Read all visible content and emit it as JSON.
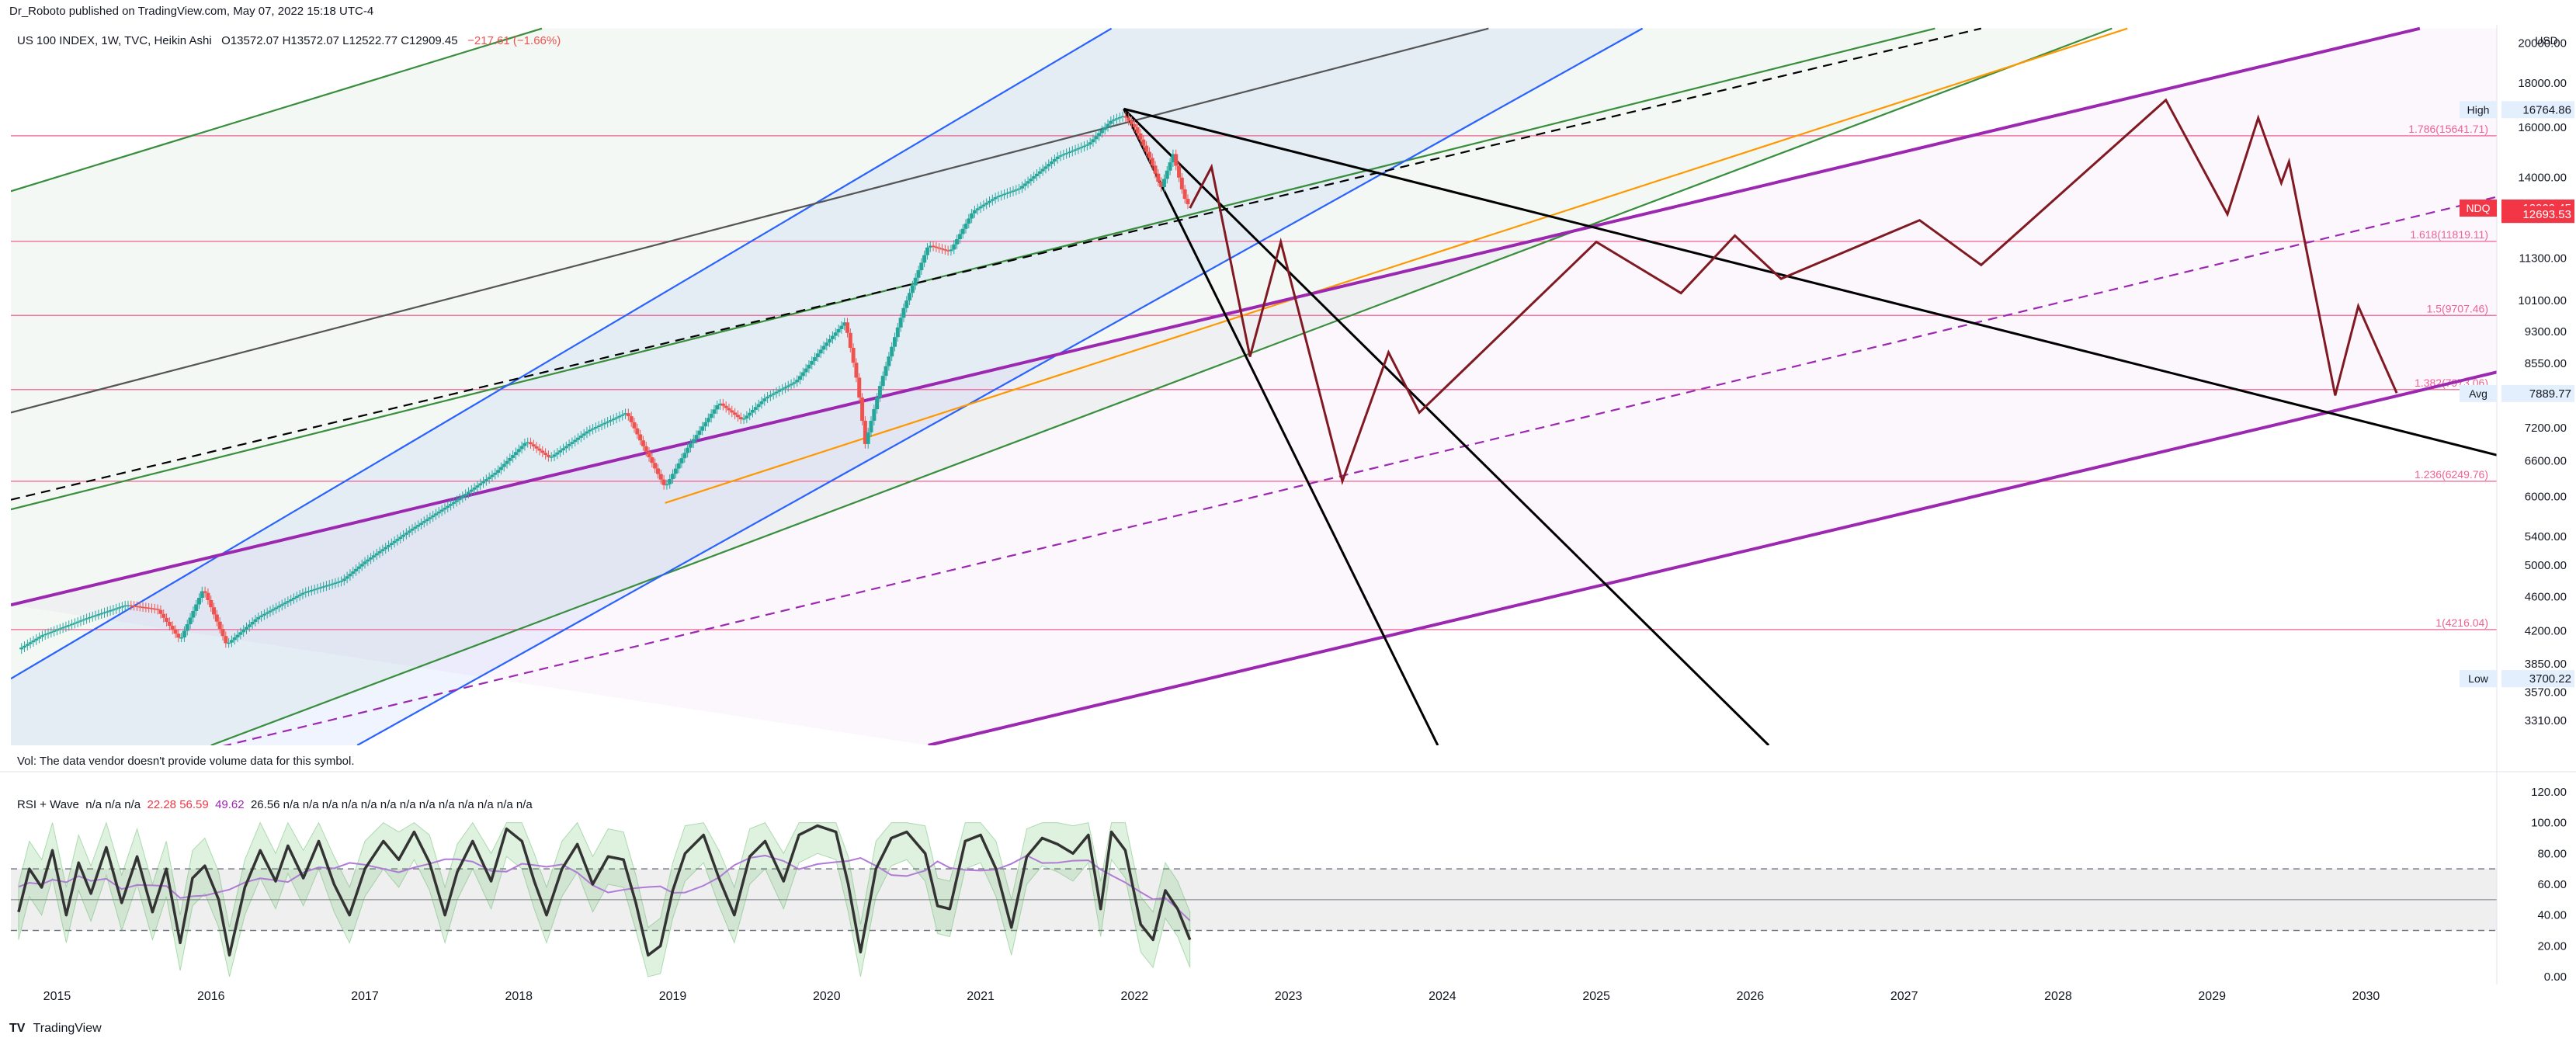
{
  "header": {
    "published": "Dr_Roboto published on TradingView.com, May 07, 2022 15:18 UTC-4"
  },
  "legend": {
    "symbol": "US 100 INDEX, 1W, TVC, Heikin Ashi",
    "ohlc": "O13572.07 H13572.07 L12522.77 C12909.45",
    "change": "−217.61 (−1.66%)"
  },
  "volume": {
    "text": "Vol: The data vendor doesn't provide volume data for this symbol."
  },
  "rsi": {
    "title": "RSI + Wave",
    "values": "n/a n/a n/a",
    "red_values": "22.28 56.59",
    "purple_value": "49.62",
    "rest": "26.56 n/a n/a n/a n/a n/a n/a n/a n/a n/a n/a n/a n/a n/a"
  },
  "footer": {
    "brand": "TradingView"
  },
  "colors": {
    "up": "#26a69a",
    "down": "#ef5350",
    "channel_green": "#388e3c",
    "channel_blue": "#2962ff",
    "purple": "#9c27b0",
    "orange": "#ff9800",
    "projection": "#801922",
    "fib": "#f06292",
    "rsi_line": "#333333",
    "rsi_ma": "#b07bd6"
  },
  "chart_data": [
    {
      "type": "line",
      "name": "price_panel",
      "scale": "log",
      "ylim": [
        3100,
        21000
      ],
      "xlim": [
        2014.7,
        2030.85
      ],
      "x_ticks": [
        "2015",
        "2016",
        "2017",
        "2018",
        "2019",
        "2020",
        "2021",
        "2022",
        "2023",
        "2024",
        "2025",
        "2026",
        "2027",
        "2028",
        "2029",
        "2030"
      ],
      "y_ticks": [
        {
          "value": 20000,
          "label": "20000.00"
        },
        {
          "value": 18000,
          "label": "18000.00"
        },
        {
          "value": 16000,
          "label": "16000.00"
        },
        {
          "value": 14000,
          "label": "14000.00"
        },
        {
          "value": 11300,
          "label": "11300.00"
        },
        {
          "value": 10100,
          "label": "10100.00"
        },
        {
          "value": 9300,
          "label": "9300.00"
        },
        {
          "value": 8550,
          "label": "8550.00"
        },
        {
          "value": 7200,
          "label": "7200.00"
        },
        {
          "value": 6600,
          "label": "6600.00"
        },
        {
          "value": 6000,
          "label": "6000.00"
        },
        {
          "value": 5400,
          "label": "5400.00"
        },
        {
          "value": 5000,
          "label": "5000.00"
        },
        {
          "value": 4600,
          "label": "4600.00"
        },
        {
          "value": 4200,
          "label": "4200.00"
        },
        {
          "value": 3850,
          "label": "3850.00"
        },
        {
          "value": 3570,
          "label": "3570.00"
        },
        {
          "value": 3310,
          "label": "3310.00"
        }
      ],
      "axis_unit": "USD",
      "price_path": [
        [
          2014.75,
          4000
        ],
        [
          2014.9,
          4150
        ],
        [
          2015.2,
          4350
        ],
        [
          2015.45,
          4500
        ],
        [
          2015.65,
          4450
        ],
        [
          2015.8,
          4100
        ],
        [
          2015.95,
          4700
        ],
        [
          2016.1,
          4050
        ],
        [
          2016.3,
          4350
        ],
        [
          2016.6,
          4650
        ],
        [
          2016.85,
          4800
        ],
        [
          2017.0,
          5050
        ],
        [
          2017.3,
          5500
        ],
        [
          2017.6,
          5950
        ],
        [
          2017.85,
          6400
        ],
        [
          2018.05,
          6950
        ],
        [
          2018.2,
          6650
        ],
        [
          2018.45,
          7150
        ],
        [
          2018.7,
          7500
        ],
        [
          2018.8,
          6900
        ],
        [
          2018.95,
          6150
        ],
        [
          2019.1,
          6850
        ],
        [
          2019.3,
          7700
        ],
        [
          2019.45,
          7350
        ],
        [
          2019.6,
          7800
        ],
        [
          2019.8,
          8150
        ],
        [
          2019.98,
          8950
        ],
        [
          2020.12,
          9550
        ],
        [
          2020.2,
          8100
        ],
        [
          2020.25,
          6900
        ],
        [
          2020.35,
          8100
        ],
        [
          2020.5,
          9900
        ],
        [
          2020.66,
          11700
        ],
        [
          2020.8,
          11500
        ],
        [
          2020.95,
          12800
        ],
        [
          2021.1,
          13300
        ],
        [
          2021.25,
          13600
        ],
        [
          2021.5,
          14800
        ],
        [
          2021.7,
          15300
        ],
        [
          2021.85,
          16300
        ],
        [
          2021.93,
          16500
        ],
        [
          2022.0,
          16000
        ],
        [
          2022.1,
          14700
        ],
        [
          2022.17,
          13600
        ],
        [
          2022.25,
          14900
        ],
        [
          2022.32,
          13300
        ],
        [
          2022.36,
          12909
        ]
      ],
      "projection_path": [
        [
          2022.36,
          12909
        ],
        [
          2022.5,
          14400
        ],
        [
          2022.75,
          8700
        ],
        [
          2022.95,
          11800
        ],
        [
          2023.35,
          6250
        ],
        [
          2023.65,
          8800
        ],
        [
          2023.85,
          7500
        ],
        [
          2025.0,
          11800
        ],
        [
          2025.55,
          10300
        ],
        [
          2025.9,
          12000
        ],
        [
          2026.2,
          10700
        ],
        [
          2027.1,
          12500
        ],
        [
          2027.5,
          11100
        ],
        [
          2028.7,
          17200
        ],
        [
          2029.1,
          12700
        ],
        [
          2029.3,
          16400
        ],
        [
          2029.45,
          13800
        ],
        [
          2029.5,
          14600
        ],
        [
          2029.8,
          7850
        ],
        [
          2029.95,
          9950
        ],
        [
          2030.2,
          7900
        ]
      ],
      "lines": [
        {
          "name": "green-channel-upper",
          "color": "#388e3c",
          "p1": [
            2014.7,
            13500
          ],
          "p2": [
            2018.15,
            20800
          ]
        },
        {
          "name": "green-channel-mid",
          "color": "#388e3c",
          "p1": [
            2014.7,
            5800
          ],
          "p2": [
            2027.2,
            20800
          ]
        },
        {
          "name": "green-channel-lower",
          "color": "#388e3c",
          "p1": [
            2016.0,
            3100
          ],
          "p2": [
            2028.35,
            20800
          ]
        },
        {
          "name": "blue-channel-upper",
          "color": "#2962ff",
          "p1": [
            2014.7,
            3700
          ],
          "p2": [
            2021.85,
            20800
          ]
        },
        {
          "name": "blue-channel-lower",
          "color": "#2962ff",
          "p1": [
            2016.95,
            3100
          ],
          "p2": [
            2025.3,
            20800
          ]
        },
        {
          "name": "black-dashed-trend",
          "color": "#000000",
          "dash": true,
          "p1": [
            2014.7,
            5950
          ],
          "p2": [
            2027.5,
            20800
          ]
        },
        {
          "name": "gray-trend",
          "color": "#555555",
          "p1": [
            2014.7,
            7500
          ],
          "p2": [
            2024.3,
            20800
          ]
        },
        {
          "name": "orange-trend",
          "color": "#ff9800",
          "p1": [
            2018.95,
            5900
          ],
          "p2": [
            2028.45,
            20800
          ]
        },
        {
          "name": "purple-upper",
          "color": "#9c27b0",
          "p1": [
            2014.7,
            4500
          ],
          "p2": [
            2030.35,
            20800
          ]
        },
        {
          "name": "purple-lower",
          "color": "#9c27b0",
          "p1": [
            2020.66,
            3100
          ],
          "p2": [
            2030.85,
            8350
          ]
        },
        {
          "name": "purple-mid-dashed",
          "color": "#9c27b0",
          "dash": true,
          "p1": [
            2014.7,
            2700
          ],
          "p2": [
            2030.85,
            13300
          ]
        },
        {
          "name": "black-fan-1",
          "color": "#000000",
          "p1": [
            2021.93,
            16800
          ],
          "p2": [
            2030.85,
            6700
          ]
        },
        {
          "name": "black-fan-2",
          "color": "#000000",
          "p1": [
            2021.93,
            16800
          ],
          "p2": [
            2026.12,
            3100
          ]
        },
        {
          "name": "black-fan-3",
          "color": "#000000",
          "p1": [
            2021.93,
            16800
          ],
          "p2": [
            2023.97,
            3100
          ]
        }
      ],
      "fib_levels": [
        {
          "value": 15641.71,
          "label": "1.786(15641.71)"
        },
        {
          "value": 11819.11,
          "label": "1.618(11819.11)"
        },
        {
          "value": 9707.46,
          "label": "1.5(9707.46)"
        },
        {
          "value": 7973.06,
          "label": "1.382(7973.06)"
        },
        {
          "value": 6249.76,
          "label": "1.236(6249.76)"
        },
        {
          "value": 4216.04,
          "label": "1(4216.04)"
        }
      ],
      "price_labels": [
        {
          "label": "High",
          "value": "16764.86",
          "y": 16764.86
        },
        {
          "label": "NDQ",
          "value": "12909.45",
          "y": 12909.45,
          "highlight": true
        },
        {
          "label": "",
          "value": "12693.53",
          "y": 12693.53,
          "highlight": true
        },
        {
          "label": "Avg",
          "value": "7889.77",
          "y": 7889.77
        },
        {
          "label": "Low",
          "value": "3700.22",
          "y": 3700.22
        }
      ]
    },
    {
      "type": "line",
      "name": "rsi_panel",
      "ylim": [
        -5,
        125
      ],
      "y_ticks": [
        {
          "value": 120,
          "label": "120.00"
        },
        {
          "value": 100,
          "label": "100.00"
        },
        {
          "value": 80,
          "label": "80.00"
        },
        {
          "value": 60,
          "label": "60.00"
        },
        {
          "value": 40,
          "label": "40.00"
        },
        {
          "value": 20,
          "label": "20.00"
        },
        {
          "value": 0,
          "label": "0.00"
        }
      ],
      "bands": {
        "upper": 70,
        "middle": 50,
        "lower": 30
      },
      "rsi": [
        [
          2014.75,
          42
        ],
        [
          2014.82,
          70
        ],
        [
          2014.9,
          58
        ],
        [
          2014.97,
          82
        ],
        [
          2015.06,
          40
        ],
        [
          2015.14,
          74
        ],
        [
          2015.22,
          54
        ],
        [
          2015.32,
          84
        ],
        [
          2015.42,
          48
        ],
        [
          2015.52,
          78
        ],
        [
          2015.62,
          42
        ],
        [
          2015.71,
          70
        ],
        [
          2015.8,
          22
        ],
        [
          2015.88,
          64
        ],
        [
          2015.96,
          72
        ],
        [
          2016.05,
          50
        ],
        [
          2016.12,
          14
        ],
        [
          2016.22,
          58
        ],
        [
          2016.32,
          82
        ],
        [
          2016.42,
          62
        ],
        [
          2016.5,
          85
        ],
        [
          2016.6,
          64
        ],
        [
          2016.7,
          88
        ],
        [
          2016.8,
          60
        ],
        [
          2016.9,
          40
        ],
        [
          2017.0,
          70
        ],
        [
          2017.12,
          88
        ],
        [
          2017.22,
          76
        ],
        [
          2017.32,
          94
        ],
        [
          2017.42,
          74
        ],
        [
          2017.52,
          40
        ],
        [
          2017.6,
          68
        ],
        [
          2017.7,
          88
        ],
        [
          2017.82,
          62
        ],
        [
          2017.92,
          96
        ],
        [
          2018.02,
          88
        ],
        [
          2018.1,
          62
        ],
        [
          2018.18,
          40
        ],
        [
          2018.28,
          70
        ],
        [
          2018.38,
          86
        ],
        [
          2018.48,
          60
        ],
        [
          2018.58,
          78
        ],
        [
          2018.68,
          76
        ],
        [
          2018.76,
          48
        ],
        [
          2018.84,
          14
        ],
        [
          2018.92,
          20
        ],
        [
          2019.0,
          56
        ],
        [
          2019.08,
          80
        ],
        [
          2019.2,
          92
        ],
        [
          2019.3,
          64
        ],
        [
          2019.4,
          40
        ],
        [
          2019.5,
          78
        ],
        [
          2019.6,
          88
        ],
        [
          2019.72,
          62
        ],
        [
          2019.82,
          92
        ],
        [
          2019.94,
          98
        ],
        [
          2020.06,
          94
        ],
        [
          2020.14,
          60
        ],
        [
          2020.22,
          16
        ],
        [
          2020.32,
          70
        ],
        [
          2020.42,
          90
        ],
        [
          2020.52,
          94
        ],
        [
          2020.64,
          80
        ],
        [
          2020.72,
          46
        ],
        [
          2020.8,
          44
        ],
        [
          2020.9,
          88
        ],
        [
          2021.0,
          92
        ],
        [
          2021.1,
          70
        ],
        [
          2021.2,
          32
        ],
        [
          2021.3,
          78
        ],
        [
          2021.4,
          90
        ],
        [
          2021.5,
          86
        ],
        [
          2021.6,
          80
        ],
        [
          2021.7,
          92
        ],
        [
          2021.78,
          44
        ],
        [
          2021.85,
          94
        ],
        [
          2021.94,
          82
        ],
        [
          2022.04,
          34
        ],
        [
          2022.12,
          24
        ],
        [
          2022.2,
          56
        ],
        [
          2022.28,
          44
        ],
        [
          2022.36,
          24
        ]
      ]
    }
  ]
}
